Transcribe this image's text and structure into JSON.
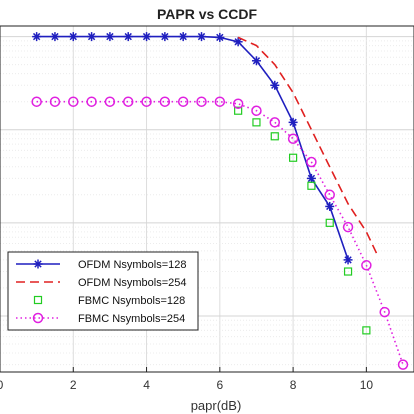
{
  "chart_data": {
    "type": "line",
    "title": "PAPR vs CCDF",
    "xlabel": "papr(dB)",
    "ylabel": "",
    "xlim": [
      0,
      11.3
    ],
    "x_ticks": [
      0,
      2,
      4,
      6,
      8,
      10
    ],
    "x_tick_labels": [
      "0",
      "2",
      "4",
      "6",
      "8",
      "10"
    ],
    "y_scale": "log",
    "ylim": [
      0.00025,
      1.3
    ],
    "grid": true,
    "legend_position": "bottom-left",
    "series": [
      {
        "name": "OFDM Nsymbols=128",
        "color": "#1f1fbf",
        "line": "solid",
        "marker": "asterisk",
        "x": [
          1,
          1.5,
          2,
          2.5,
          3,
          3.5,
          4,
          4.5,
          5,
          5.5,
          6,
          6.5,
          7,
          7.5,
          8,
          8.5,
          9,
          9.5
        ],
        "y": [
          1,
          1,
          1,
          1,
          1,
          1,
          1,
          1,
          1,
          1,
          0.98,
          0.88,
          0.55,
          0.3,
          0.12,
          0.03,
          0.015,
          0.004
        ]
      },
      {
        "name": "OFDM Nsymbols=254",
        "color": "#e02020",
        "line": "dashed",
        "marker": "none",
        "x": [
          6.5,
          7,
          7.5,
          8,
          8.5,
          9,
          9.5,
          10,
          10.3
        ],
        "y": [
          0.98,
          0.8,
          0.5,
          0.25,
          0.1,
          0.04,
          0.016,
          0.008,
          0.0045
        ]
      },
      {
        "name": "FBMC Nsymbols=128",
        "color": "#22cc22",
        "line": "none",
        "marker": "square",
        "x": [
          6.5,
          7,
          7.5,
          8,
          8.5,
          9,
          9.5,
          10,
          10.5
        ],
        "y": [
          0.16,
          0.12,
          0.085,
          0.05,
          0.025,
          0.01,
          0.003,
          0.0007,
          0.00015
        ]
      },
      {
        "name": "FBMC Nsymbols=254",
        "color": "#e020e0",
        "line": "dotted",
        "marker": "circle",
        "x": [
          1,
          1.5,
          2,
          2.5,
          3,
          3.5,
          4,
          4.5,
          5,
          5.5,
          6,
          6.5,
          7,
          7.5,
          8,
          8.5,
          9,
          9.5,
          10,
          10.5,
          11
        ],
        "y": [
          0.2,
          0.2,
          0.2,
          0.2,
          0.2,
          0.2,
          0.2,
          0.2,
          0.2,
          0.2,
          0.2,
          0.19,
          0.16,
          0.12,
          0.08,
          0.045,
          0.02,
          0.009,
          0.0035,
          0.0011,
          0.0003
        ]
      }
    ]
  }
}
